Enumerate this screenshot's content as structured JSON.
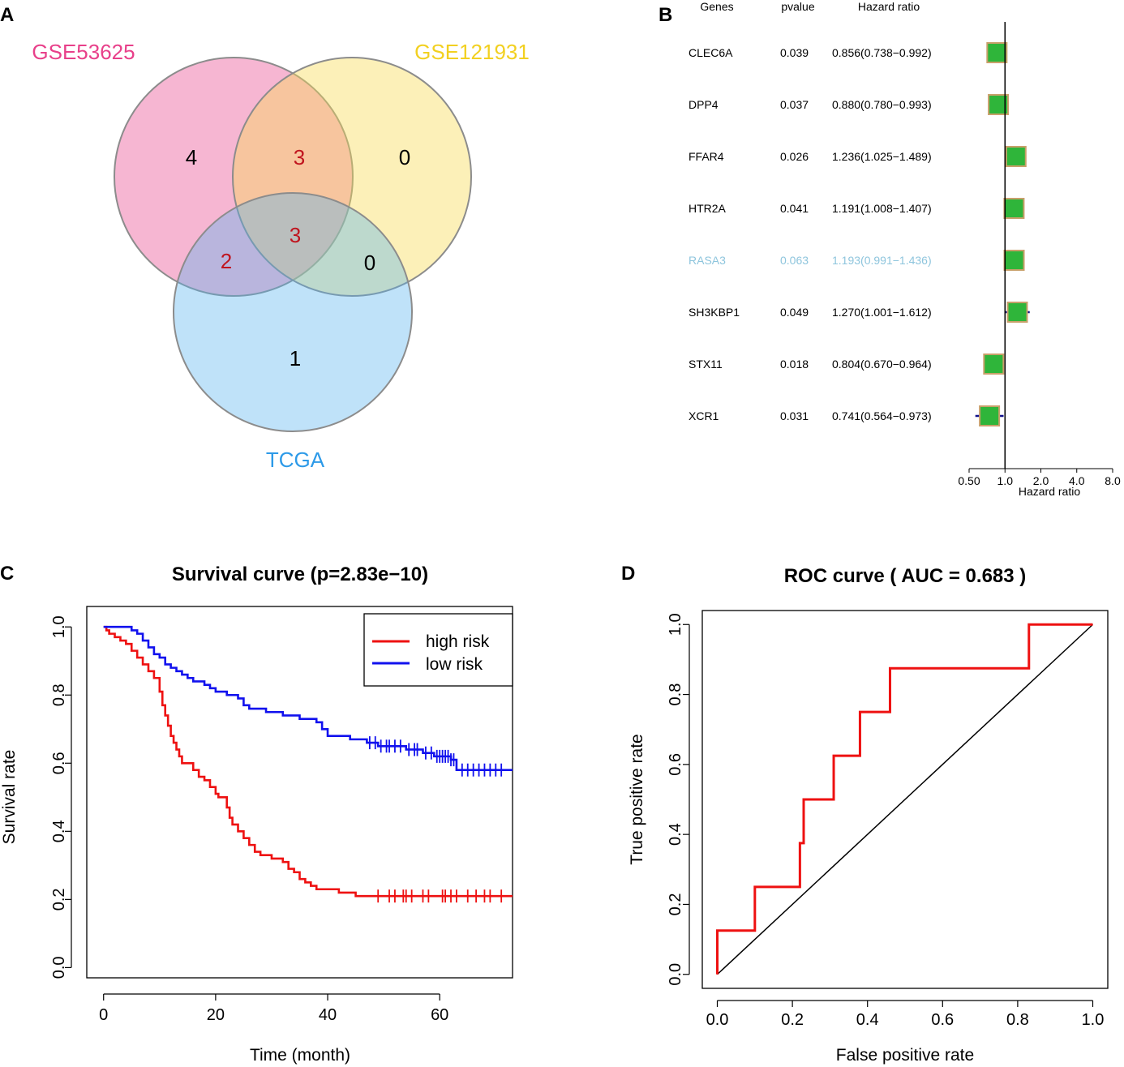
{
  "panels": {
    "a": "A",
    "b": "B",
    "c": "C",
    "d": "D"
  },
  "colors": {
    "gse53625": "#e8408a",
    "gse121931": "#f2d020",
    "tcga": "#2d9ae8",
    "venn_red_count": "#c0141e",
    "forest_box_fill": "#2fb53a",
    "forest_box_stroke": "#c8a06a",
    "forest_ci": "#10108c",
    "rasa3_text": "#8ec5dd",
    "high_risk": "#ee1111",
    "low_risk": "#1111ee",
    "roc": "#ee1111"
  },
  "chart_data": [
    {
      "type": "venn",
      "sets": [
        "GSE53625",
        "GSE121931",
        "TCGA"
      ],
      "counts": {
        "gse53625_only": "4",
        "gse121931_only": "0",
        "tcga_only": "1",
        "gse53625_gse121931": "3",
        "gse53625_tcga": "2",
        "gse121931_tcga": "0",
        "all_three": "3"
      }
    },
    {
      "type": "forest",
      "headers": {
        "genes": "Genes",
        "pvalue": "pvalue",
        "hr": "Hazard ratio"
      },
      "rows": [
        {
          "gene": "CLEC6A",
          "pvalue": "0.039",
          "hr_text": "0.856(0.738−0.992)",
          "hr": 0.856,
          "low": 0.738,
          "high": 0.992
        },
        {
          "gene": "DPP4",
          "pvalue": "0.037",
          "hr_text": "0.880(0.780−0.993)",
          "hr": 0.88,
          "low": 0.78,
          "high": 0.993
        },
        {
          "gene": "FFAR4",
          "pvalue": "0.026",
          "hr_text": "1.236(1.025−1.489)",
          "hr": 1.236,
          "low": 1.025,
          "high": 1.489
        },
        {
          "gene": "HTR2A",
          "pvalue": "0.041",
          "hr_text": "1.191(1.008−1.407)",
          "hr": 1.191,
          "low": 1.008,
          "high": 1.407
        },
        {
          "gene": "RASA3",
          "pvalue": "0.063",
          "hr_text": "1.193(0.991−1.436)",
          "hr": 1.193,
          "low": 0.991,
          "high": 1.436,
          "highlight": true
        },
        {
          "gene": "SH3KBP1",
          "pvalue": "0.049",
          "hr_text": "1.270(1.001−1.612)",
          "hr": 1.27,
          "low": 1.001,
          "high": 1.612
        },
        {
          "gene": "STX11",
          "pvalue": "0.018",
          "hr_text": "0.804(0.670−0.964)",
          "hr": 0.804,
          "low": 0.67,
          "high": 0.964
        },
        {
          "gene": "XCR1",
          "pvalue": "0.031",
          "hr_text": "0.741(0.564−0.973)",
          "hr": 0.741,
          "low": 0.564,
          "high": 0.973
        }
      ],
      "xscale": "log",
      "xlim": [
        0.5,
        8.0
      ],
      "reference": 1.0,
      "ticks": [
        {
          "value": 0.5,
          "label": "0.50"
        },
        {
          "value": 1.0,
          "label": "1.0"
        },
        {
          "value": 2.0,
          "label": "2.0"
        },
        {
          "value": 4.0,
          "label": "4.0"
        },
        {
          "value": 8.0,
          "label": "8.0"
        }
      ],
      "xlabel": "Hazard ratio"
    },
    {
      "type": "line",
      "title": "Survival curve (p=2.83e−10)",
      "xlabel": "Time (month)",
      "ylabel": "Survival rate",
      "xlim": [
        -3,
        73
      ],
      "ylim": [
        -0.03,
        1.06
      ],
      "xticks": [
        0,
        20,
        40,
        60
      ],
      "yticks": [
        {
          "value": 0.0,
          "label": "0.0"
        },
        {
          "value": 0.2,
          "label": "0.2"
        },
        {
          "value": 0.4,
          "label": "0.4"
        },
        {
          "value": 0.6,
          "label": "0.6"
        },
        {
          "value": 0.8,
          "label": "0.8"
        },
        {
          "value": 1.0,
          "label": "1.0"
        }
      ],
      "legend_position": "top-right",
      "series": [
        {
          "name": "high risk",
          "step": [
            [
              0,
              1.0
            ],
            [
              0.5,
              0.99
            ],
            [
              1,
              0.98
            ],
            [
              2,
              0.97
            ],
            [
              3,
              0.96
            ],
            [
              4,
              0.95
            ],
            [
              5,
              0.93
            ],
            [
              6,
              0.91
            ],
            [
              7,
              0.89
            ],
            [
              8,
              0.87
            ],
            [
              9,
              0.85
            ],
            [
              10,
              0.81
            ],
            [
              10.5,
              0.77
            ],
            [
              11,
              0.74
            ],
            [
              11.5,
              0.71
            ],
            [
              12,
              0.68
            ],
            [
              12.5,
              0.66
            ],
            [
              13,
              0.64
            ],
            [
              13.5,
              0.62
            ],
            [
              14,
              0.6
            ],
            [
              16,
              0.58
            ],
            [
              17,
              0.56
            ],
            [
              18,
              0.55
            ],
            [
              19,
              0.53
            ],
            [
              20,
              0.51
            ],
            [
              20.5,
              0.5
            ],
            [
              22,
              0.47
            ],
            [
              22.5,
              0.44
            ],
            [
              23,
              0.42
            ],
            [
              24,
              0.4
            ],
            [
              25,
              0.38
            ],
            [
              26,
              0.36
            ],
            [
              27,
              0.34
            ],
            [
              28,
              0.33
            ],
            [
              30,
              0.32
            ],
            [
              32,
              0.31
            ],
            [
              33,
              0.29
            ],
            [
              34,
              0.28
            ],
            [
              35,
              0.26
            ],
            [
              36,
              0.25
            ],
            [
              37,
              0.24
            ],
            [
              38,
              0.23
            ],
            [
              42,
              0.22
            ],
            [
              45,
              0.21
            ],
            [
              73,
              0.21
            ]
          ],
          "censor": [
            49,
            51,
            52,
            53.5,
            54,
            55,
            57,
            58,
            60.5,
            61,
            62,
            63,
            65,
            66.5,
            68,
            69,
            71
          ]
        },
        {
          "name": "low risk",
          "step": [
            [
              0,
              1.0
            ],
            [
              5,
              0.99
            ],
            [
              6,
              0.98
            ],
            [
              7,
              0.96
            ],
            [
              8,
              0.94
            ],
            [
              9,
              0.92
            ],
            [
              10,
              0.91
            ],
            [
              11,
              0.89
            ],
            [
              12,
              0.88
            ],
            [
              13,
              0.87
            ],
            [
              14,
              0.86
            ],
            [
              15,
              0.85
            ],
            [
              16,
              0.84
            ],
            [
              18,
              0.83
            ],
            [
              19,
              0.82
            ],
            [
              20,
              0.81
            ],
            [
              22,
              0.8
            ],
            [
              24,
              0.79
            ],
            [
              25,
              0.77
            ],
            [
              26,
              0.76
            ],
            [
              29,
              0.75
            ],
            [
              32,
              0.74
            ],
            [
              35,
              0.73
            ],
            [
              38,
              0.72
            ],
            [
              39,
              0.7
            ],
            [
              40,
              0.68
            ],
            [
              44,
              0.67
            ],
            [
              47,
              0.66
            ],
            [
              49,
              0.65
            ],
            [
              54,
              0.64
            ],
            [
              57,
              0.63
            ],
            [
              59,
              0.62
            ],
            [
              62,
              0.61
            ],
            [
              63,
              0.58
            ],
            [
              73,
              0.58
            ]
          ],
          "censor": [
            47.5,
            48.5,
            49.5,
            50.5,
            51,
            52,
            53,
            54.5,
            55.5,
            56,
            57.5,
            58.5,
            59.5,
            60,
            60.5,
            61,
            61.5,
            62,
            62.5,
            64,
            65,
            66,
            67,
            68,
            69,
            70,
            71
          ]
        }
      ]
    },
    {
      "type": "line",
      "title": "ROC curve ( AUC =  0.683 )",
      "xlabel": "False positive rate",
      "ylabel": "True positive rate",
      "xlim": [
        -0.04,
        1.04
      ],
      "ylim": [
        -0.04,
        1.04
      ],
      "xticks": [
        {
          "value": 0.0,
          "label": "0.0"
        },
        {
          "value": 0.2,
          "label": "0.2"
        },
        {
          "value": 0.4,
          "label": "0.4"
        },
        {
          "value": 0.6,
          "label": "0.6"
        },
        {
          "value": 0.8,
          "label": "0.8"
        },
        {
          "value": 1.0,
          "label": "1.0"
        }
      ],
      "yticks": [
        {
          "value": 0.0,
          "label": "0.0"
        },
        {
          "value": 0.2,
          "label": "0.2"
        },
        {
          "value": 0.4,
          "label": "0.4"
        },
        {
          "value": 0.6,
          "label": "0.6"
        },
        {
          "value": 0.8,
          "label": "0.8"
        },
        {
          "value": 1.0,
          "label": "1.0"
        }
      ],
      "series": [
        {
          "name": "ROC",
          "x": [
            0.0,
            0.0,
            0.1,
            0.1,
            0.22,
            0.22,
            0.23,
            0.23,
            0.31,
            0.31,
            0.38,
            0.38,
            0.46,
            0.46,
            0.83,
            0.83,
            1.0
          ],
          "y": [
            0.0,
            0.125,
            0.125,
            0.25,
            0.25,
            0.375,
            0.375,
            0.5,
            0.5,
            0.625,
            0.625,
            0.75,
            0.75,
            0.875,
            0.875,
            1.0,
            1.0
          ]
        },
        {
          "name": "diagonal",
          "x": [
            0.0,
            1.0
          ],
          "y": [
            0.0,
            1.0
          ]
        }
      ]
    }
  ]
}
